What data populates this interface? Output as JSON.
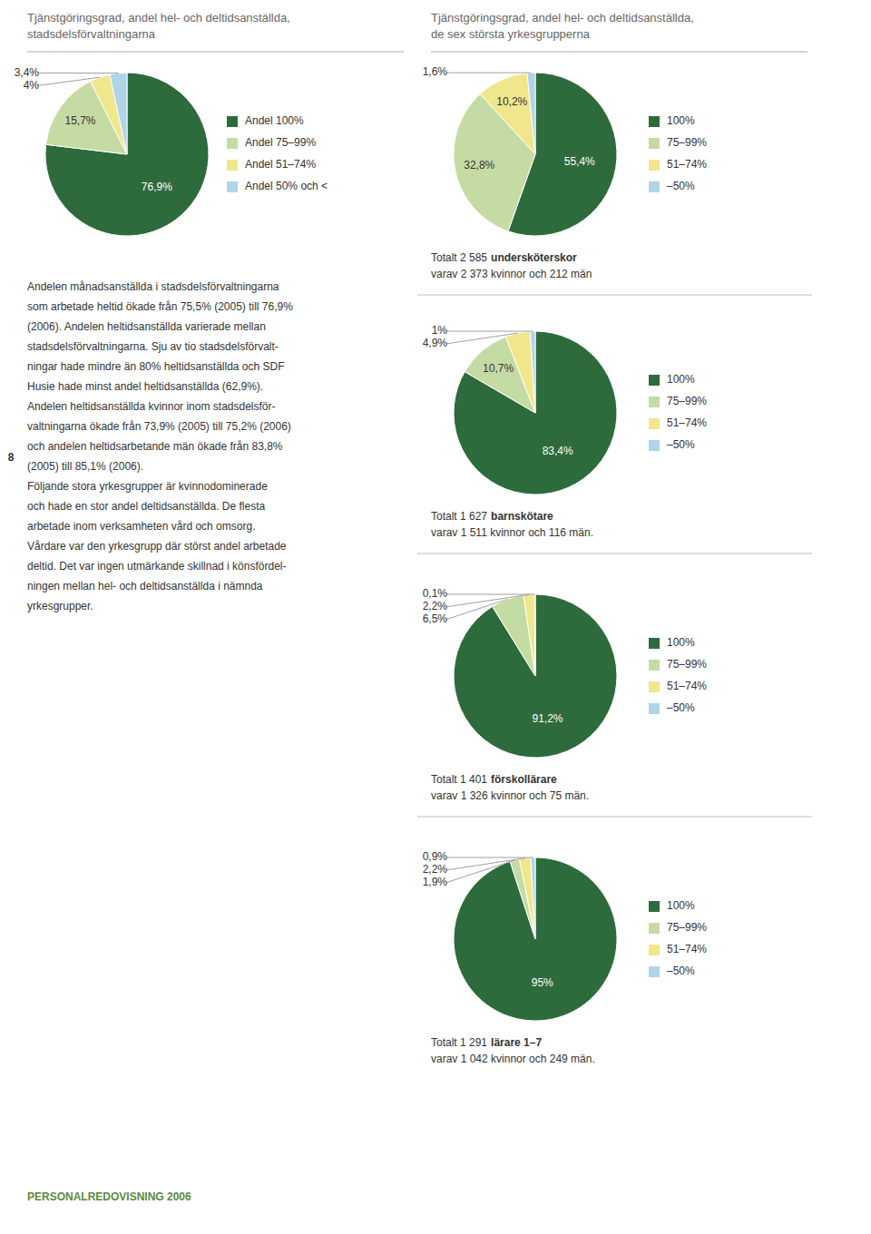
{
  "chart_data": [
    {
      "type": "pie",
      "title": "Tjänstgöringsgrad, andel hel- och deltidsanställda,\nstadsdelsförvaltningarna",
      "categories": [
        "Andel 100%",
        "Andel 75–99%",
        "Andel 51–74%",
        "Andel 50% och <"
      ],
      "values": [
        76.9,
        15.7,
        4.0,
        3.4
      ],
      "value_labels": [
        "76,9%",
        "15,7%",
        "4%",
        "3,4%"
      ],
      "colors": [
        "#2d6b3c",
        "#c5dba4",
        "#f0e68c",
        "#b0d4e8"
      ],
      "data_labels": true,
      "legend": "right",
      "annotations": [
        "Andelen månadsanställda i stadsdelsförvaltningarna",
        "som arbetade heltid ökade från 75,5% (2005) till 76,9%",
        "(2006). Andelen heltidsanställda varierade mellan",
        "stadsdelsförvaltningarna. Sju av tio stadsdelsförvalt-",
        "ningar hade mindre än 80% heltidsanställda och SDF",
        "Husie hade minst andel heltidsanställda (62,9%).",
        "Andelen heltidsanställda kvinnor inom stadsdelsför-",
        "valtningarna ökade från 73,9% (2005) till 75,2% (2006)",
        "och andelen heltidsarbetande män ökade från 83,8%",
        "(2005) till 85,1% (2006).",
        "Följande stora yrkesgrupper är kvinnodominerade",
        "och hade en stor andel deltidsanställda. De flesta",
        "arbetade inom verksamheten vård och omsorg.",
        "Vårdare var den yrkesgrupp där störst andel arbetade",
        "deltid. Det var ingen utmärkande skillnad i könsfördel-",
        "ningen mellan hel- och deltidsanställda i nämnda",
        "yrkesgrupper.",
        "8",
        "PERSONALREDOVISNING 2006"
      ]
    },
    {
      "type": "pie",
      "title": "Tjänstgöringsgrad, andel hel- och deltidsanställda,\nde sex största yrkesgrupperna",
      "categories": [
        "100%",
        "75–99%",
        "51–74%",
        "–50%"
      ],
      "values": [
        55.4,
        32.8,
        10.2,
        1.6
      ],
      "value_labels": [
        "55,4%",
        "32,8%",
        "10,2%",
        "1,6%"
      ],
      "colors": [
        "#2d6b3c",
        "#c5dba4",
        "#f0e68c",
        "#b0d4e8"
      ],
      "data_labels": true,
      "legend": "right",
      "annotations": [
        "Totalt 2 585",
        "undersköterskor",
        "varav 2 373 kvinnor och 212 män"
      ]
    },
    {
      "type": "pie",
      "categories": [
        "100%",
        "75–99%",
        "51–74%",
        "–50%"
      ],
      "values": [
        83.4,
        10.7,
        4.9,
        1.0
      ],
      "value_labels": [
        "83,4%",
        "10,7%",
        "4,9%",
        "1%"
      ],
      "colors": [
        "#2d6b3c",
        "#c5dba4",
        "#f0e68c",
        "#b0d4e8"
      ],
      "data_labels": true,
      "legend": "right",
      "annotations": [
        "Totalt 1 627",
        "barnskötare",
        "varav 1 511 kvinnor och 116 män."
      ]
    },
    {
      "type": "pie",
      "categories": [
        "100%",
        "75–99%",
        "51–74%",
        "–50%"
      ],
      "values": [
        91.2,
        6.5,
        2.2,
        0.1
      ],
      "value_labels": [
        "91,2%",
        "6,5%",
        "2,2%",
        "0,1%"
      ],
      "colors": [
        "#2d6b3c",
        "#c5dba4",
        "#f0e68c",
        "#b0d4e8"
      ],
      "data_labels": true,
      "legend": "right",
      "annotations": [
        "Totalt 1 401",
        "förskollärare",
        "varav 1 326 kvinnor och 75 män."
      ]
    },
    {
      "type": "pie",
      "categories": [
        "100%",
        "75–99%",
        "51–74%",
        "–50%"
      ],
      "values": [
        95.0,
        1.9,
        2.2,
        0.9
      ],
      "value_labels": [
        "95%",
        "1,9%",
        "2,2%",
        "0,9%"
      ],
      "colors": [
        "#2d6b3c",
        "#c5dba4",
        "#f0e68c",
        "#b0d4e8"
      ],
      "data_labels": true,
      "legend": "right",
      "annotations": [
        "Totalt 1 291",
        "lärare 1–7",
        "varav 1 042 kvinnor och 249 män."
      ]
    }
  ]
}
